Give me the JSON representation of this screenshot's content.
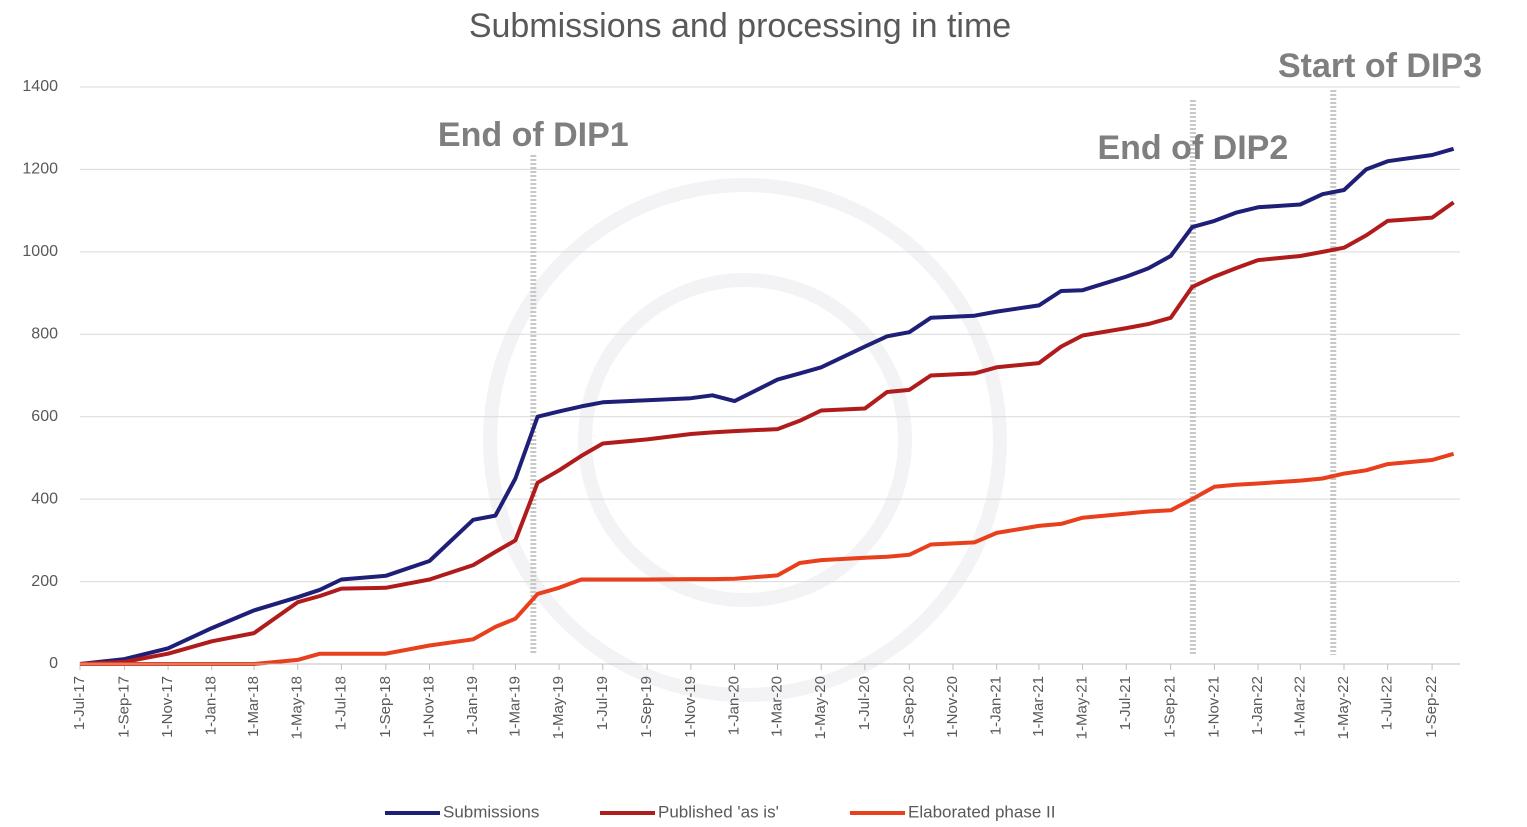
{
  "chart_data": {
    "type": "line",
    "title": "Submissions and processing in time",
    "x": [
      "2017-07-01",
      "2017-09-01",
      "2017-11-01",
      "2018-01-01",
      "2018-03-01",
      "2018-05-01",
      "2018-06-01",
      "2018-07-01",
      "2018-09-01",
      "2018-11-01",
      "2019-01-01",
      "2019-02-01",
      "2019-03-01",
      "2019-04-01",
      "2019-05-01",
      "2019-06-01",
      "2019-07-01",
      "2019-09-01",
      "2019-11-01",
      "2019-12-01",
      "2020-01-01",
      "2020-03-01",
      "2020-04-01",
      "2020-05-01",
      "2020-07-01",
      "2020-08-01",
      "2020-09-01",
      "2020-10-01",
      "2020-12-01",
      "2021-01-01",
      "2021-03-01",
      "2021-04-01",
      "2021-05-01",
      "2021-07-01",
      "2021-08-01",
      "2021-09-01",
      "2021-10-01",
      "2021-11-01",
      "2021-12-01",
      "2022-01-01",
      "2022-03-01",
      "2022-04-01",
      "2022-05-01",
      "2022-06-01",
      "2022-07-01",
      "2022-09-01",
      "2022-10-01"
    ],
    "series": [
      {
        "name": "Submissions",
        "color": "#1f1f78",
        "values": [
          0,
          12,
          38,
          87,
          130,
          162,
          180,
          205,
          214,
          250,
          350,
          360,
          450,
          600,
          613,
          625,
          635,
          640,
          645,
          652,
          638,
          690,
          705,
          720,
          770,
          795,
          805,
          840,
          845,
          855,
          870,
          905,
          907,
          940,
          960,
          990,
          1060,
          1075,
          1095,
          1108,
          1115,
          1140,
          1150,
          1200,
          1220,
          1235,
          1250
        ]
      },
      {
        "name": "Published 'as is'",
        "color": "#b01c1c",
        "values": [
          0,
          5,
          25,
          55,
          75,
          150,
          165,
          183,
          185,
          205,
          240,
          272,
          300,
          440,
          470,
          505,
          535,
          545,
          558,
          562,
          565,
          570,
          590,
          615,
          620,
          660,
          665,
          700,
          705,
          720,
          730,
          770,
          797,
          815,
          825,
          840,
          915,
          940,
          960,
          980,
          990,
          1000,
          1010,
          1040,
          1075,
          1083,
          1120
        ]
      },
      {
        "name": "Elaborated phase II",
        "color": "#e8401c",
        "values": [
          0,
          0,
          0,
          0,
          0,
          10,
          25,
          25,
          25,
          45,
          60,
          90,
          110,
          170,
          185,
          205,
          205,
          205,
          206,
          206,
          207,
          215,
          245,
          252,
          258,
          260,
          265,
          290,
          295,
          318,
          335,
          340,
          355,
          365,
          370,
          373,
          400,
          430,
          435,
          438,
          445,
          450,
          462,
          470,
          485,
          495,
          510
        ]
      }
    ],
    "xlim": [
      "2017-07-01",
      "2022-10-10"
    ],
    "xticks": [
      {
        "value": "2017-07-01",
        "label": "1-Jul-17"
      },
      {
        "value": "2017-09-01",
        "label": "1-Sep-17"
      },
      {
        "value": "2017-11-01",
        "label": "1-Nov-17"
      },
      {
        "value": "2018-01-01",
        "label": "1-Jan-18"
      },
      {
        "value": "2018-03-01",
        "label": "1-Mar-18"
      },
      {
        "value": "2018-05-01",
        "label": "1-May-18"
      },
      {
        "value": "2018-07-01",
        "label": "1-Jul-18"
      },
      {
        "value": "2018-09-01",
        "label": "1-Sep-18"
      },
      {
        "value": "2018-11-01",
        "label": "1-Nov-18"
      },
      {
        "value": "2019-01-01",
        "label": "1-Jan-19"
      },
      {
        "value": "2019-03-01",
        "label": "1-Mar-19"
      },
      {
        "value": "2019-05-01",
        "label": "1-May-19"
      },
      {
        "value": "2019-07-01",
        "label": "1-Jul-19"
      },
      {
        "value": "2019-09-01",
        "label": "1-Sep-19"
      },
      {
        "value": "2019-11-01",
        "label": "1-Nov-19"
      },
      {
        "value": "2020-01-01",
        "label": "1-Jan-20"
      },
      {
        "value": "2020-03-01",
        "label": "1-Mar-20"
      },
      {
        "value": "2020-05-01",
        "label": "1-May-20"
      },
      {
        "value": "2020-07-01",
        "label": "1-Jul-20"
      },
      {
        "value": "2020-09-01",
        "label": "1-Sep-20"
      },
      {
        "value": "2020-11-01",
        "label": "1-Nov-20"
      },
      {
        "value": "2021-01-01",
        "label": "1-Jan-21"
      },
      {
        "value": "2021-03-01",
        "label": "1-Mar-21"
      },
      {
        "value": "2021-05-01",
        "label": "1-May-21"
      },
      {
        "value": "2021-07-01",
        "label": "1-Jul-21"
      },
      {
        "value": "2021-09-01",
        "label": "1-Sep-21"
      },
      {
        "value": "2021-11-01",
        "label": "1-Nov-21"
      },
      {
        "value": "2022-01-01",
        "label": "1-Jan-22"
      },
      {
        "value": "2022-03-01",
        "label": "1-Mar-22"
      },
      {
        "value": "2022-05-01",
        "label": "1-May-22"
      },
      {
        "value": "2022-07-01",
        "label": "1-Jul-22"
      },
      {
        "value": "2022-09-01",
        "label": "1-Sep-22"
      }
    ],
    "ylim": [
      0,
      1400
    ],
    "yticks": [
      0,
      200,
      400,
      600,
      800,
      1000,
      1200,
      1400
    ],
    "grid": true,
    "legend": "bottom",
    "annotations": [
      {
        "text": "End of DIP1",
        "x": "2019-03-26"
      },
      {
        "text": "End of DIP2",
        "x": "2021-10-02"
      },
      {
        "text": "Start of DIP3",
        "x": "2022-04-16"
      }
    ]
  }
}
